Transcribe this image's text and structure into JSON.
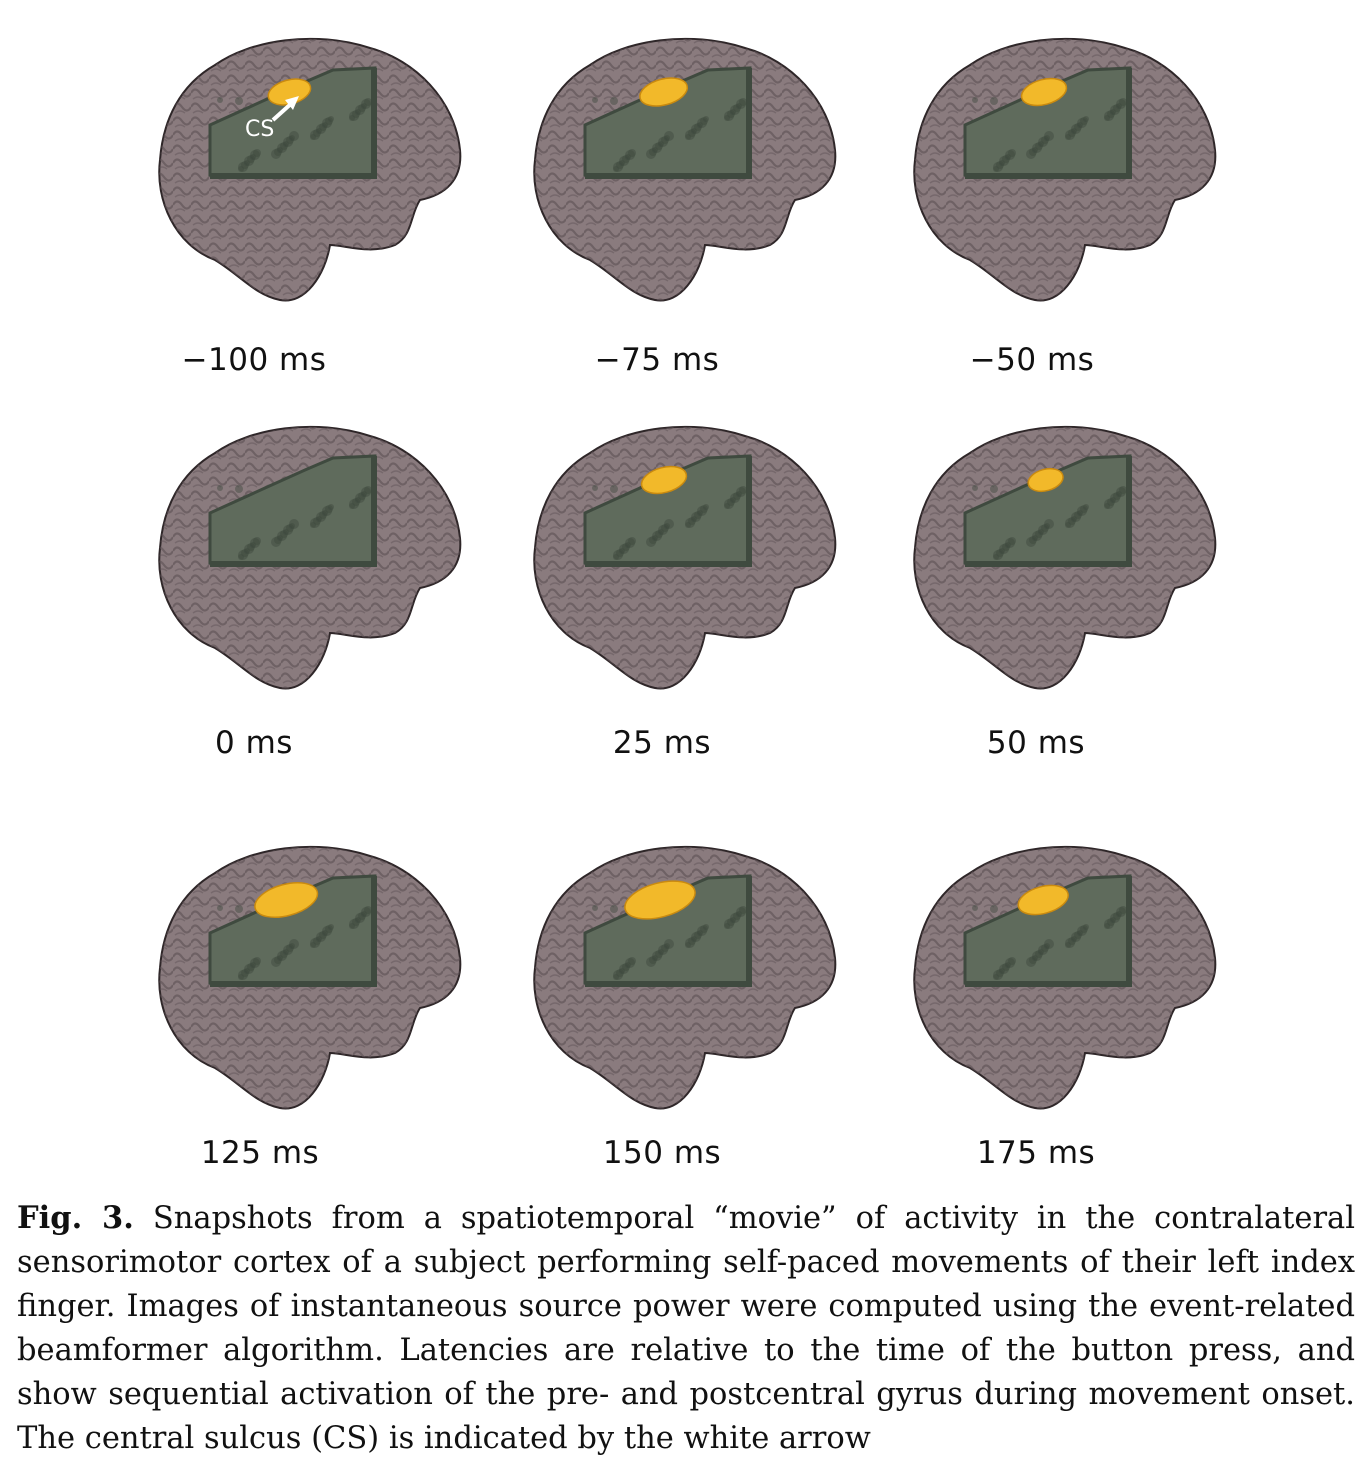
{
  "figure": {
    "panels": [
      {
        "label": "−100 ms",
        "activation": 0.45,
        "annotation": "CS"
      },
      {
        "label": "−75 ms",
        "activation": 0.55
      },
      {
        "label": "−50 ms",
        "activation": 0.5
      },
      {
        "label": "0 ms",
        "activation": 0.0
      },
      {
        "label": "25 ms",
        "activation": 0.5
      },
      {
        "label": "50 ms",
        "activation": 0.3
      },
      {
        "label": "125 ms",
        "activation": 0.85
      },
      {
        "label": "150 ms",
        "activation": 1.0
      },
      {
        "label": "175 ms",
        "activation": 0.6
      }
    ],
    "colors": {
      "brain": "#8a7b7e",
      "brain_dark": "#5e5255",
      "cutaway": "#5f6b5c",
      "cutaway_dark": "#3f4a3f",
      "activation": "#f2b92a",
      "arrow": "#ffffff"
    }
  },
  "caption": {
    "label": "Fig. 3.",
    "text": "Snapshots from a spatiotemporal “movie” of activity in the contralateral sensorimotor cortex of a subject performing self-paced movements of their left index finger. Images of instantaneous source power were computed using the event-related beamformer algorithm. Latencies are relative to the time of the button press, and show sequential activation of the pre- and postcentral gyrus during movement onset. The central sulcus (CS) is indicated by the white arrow"
  }
}
